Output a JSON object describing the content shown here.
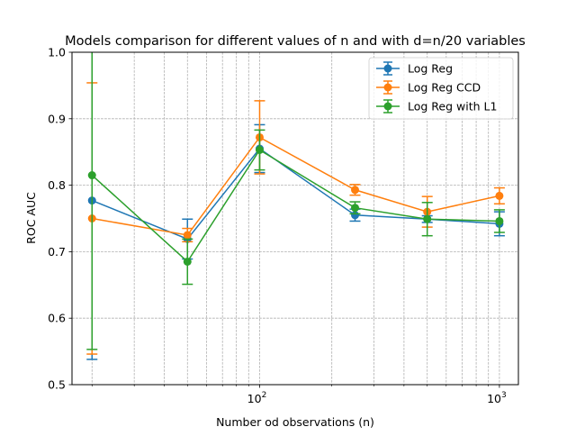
{
  "chart_data": {
    "type": "line",
    "title": "Models comparison for different values of n and with d=n/20 variables",
    "xlabel": "Number od observations (n)",
    "ylabel": "ROC AUC",
    "xscale": "log",
    "xlim": [
      16.5,
      1200
    ],
    "ylim": [
      0.5,
      1.0
    ],
    "x": [
      20,
      50,
      100,
      250,
      500,
      1000
    ],
    "xticks": [
      {
        "value": 100,
        "base": "10",
        "exp": "2"
      },
      {
        "value": 1000,
        "base": "10",
        "exp": "3"
      }
    ],
    "yticks": [
      {
        "value": 0.5,
        "label": "0.5"
      },
      {
        "value": 0.6,
        "label": "0.6"
      },
      {
        "value": 0.7,
        "label": "0.7"
      },
      {
        "value": 0.8,
        "label": "0.8"
      },
      {
        "value": 0.9,
        "label": "0.9"
      },
      {
        "value": 1.0,
        "label": "1.0"
      }
    ],
    "grid": true,
    "legend_position": "top-right",
    "series": [
      {
        "name": "Log Reg",
        "color": "#1f77b4",
        "values": [
          0.777,
          0.719,
          0.855,
          0.755,
          0.749,
          0.742
        ],
        "errors": [
          0.239,
          0.03,
          0.036,
          0.009,
          0.005,
          0.018
        ]
      },
      {
        "name": "Log Reg CCD",
        "color": "#ff7f0e",
        "values": [
          0.75,
          0.725,
          0.872,
          0.793,
          0.76,
          0.784
        ],
        "errors": [
          0.204,
          0.01,
          0.055,
          0.008,
          0.023,
          0.012
        ]
      },
      {
        "name": "Log Reg with L1",
        "color": "#2ca02c",
        "values": [
          0.815,
          0.685,
          0.853,
          0.766,
          0.749,
          0.746
        ],
        "errors": [
          0.262,
          0.034,
          0.03,
          0.009,
          0.025,
          0.017
        ]
      }
    ]
  }
}
